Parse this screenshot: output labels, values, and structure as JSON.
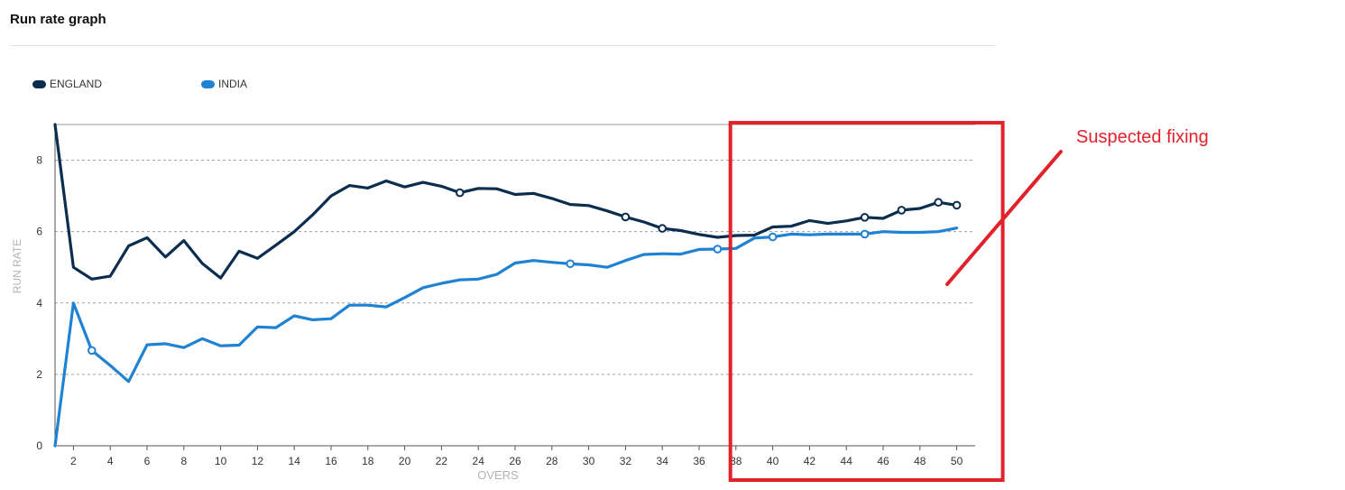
{
  "header": {
    "title": "Run rate graph"
  },
  "legend": [
    {
      "name": "ENGLAND",
      "color": "#0b2d4e"
    },
    {
      "name": "INDIA",
      "color": "#1f82d3"
    }
  ],
  "annotation": {
    "text": "Suspected fixing",
    "color": "#e1222a"
  },
  "chart_data": {
    "type": "line",
    "xlabel": "OVERS",
    "ylabel": "RUN RATE",
    "xlim": [
      1,
      51
    ],
    "ylim": [
      0,
      9
    ],
    "xticks": [
      2,
      4,
      6,
      8,
      10,
      12,
      14,
      16,
      18,
      20,
      22,
      24,
      26,
      28,
      30,
      32,
      34,
      36,
      38,
      40,
      42,
      44,
      46,
      48,
      50
    ],
    "yticks": [
      0,
      2,
      4,
      6,
      8
    ],
    "grid": "horizontal-dashed",
    "legend_position": "top-left",
    "highlight_region": {
      "x_from": 37.7,
      "x_to": 52.5,
      "label": "Suspected fixing"
    },
    "x": [
      1,
      2,
      3,
      4,
      5,
      6,
      7,
      8,
      9,
      10,
      11,
      12,
      13,
      14,
      15,
      16,
      17,
      18,
      19,
      20,
      21,
      22,
      23,
      24,
      25,
      26,
      27,
      28,
      29,
      30,
      31,
      32,
      33,
      34,
      35,
      36,
      37,
      38,
      39,
      40,
      41,
      42,
      43,
      44,
      45,
      46,
      47,
      48,
      49,
      50
    ],
    "series": [
      {
        "name": "ENGLAND",
        "color": "#0b2d4e",
        "values": [
          9.0,
          5.0,
          4.67,
          4.75,
          5.6,
          5.83,
          5.29,
          5.75,
          5.11,
          4.7,
          5.45,
          5.25,
          5.62,
          6.0,
          6.47,
          7.0,
          7.29,
          7.22,
          7.42,
          7.25,
          7.38,
          7.27,
          7.09,
          7.21,
          7.2,
          7.04,
          7.07,
          6.93,
          6.76,
          6.73,
          6.58,
          6.41,
          6.27,
          6.09,
          6.03,
          5.92,
          5.84,
          5.89,
          5.9,
          6.13,
          6.15,
          6.31,
          6.23,
          6.3,
          6.4,
          6.37,
          6.6,
          6.65,
          6.82,
          6.74
        ],
        "markers_at": [
          23,
          32,
          34,
          45,
          47,
          49,
          50
        ]
      },
      {
        "name": "INDIA",
        "color": "#1f82d3",
        "values": [
          0.0,
          4.0,
          2.67,
          2.25,
          1.8,
          2.83,
          2.86,
          2.75,
          3.0,
          2.8,
          2.82,
          3.33,
          3.31,
          3.64,
          3.53,
          3.56,
          3.94,
          3.94,
          3.89,
          4.15,
          4.43,
          4.55,
          4.65,
          4.67,
          4.8,
          5.12,
          5.19,
          5.14,
          5.1,
          5.07,
          5.0,
          5.19,
          5.36,
          5.38,
          5.37,
          5.5,
          5.51,
          5.53,
          5.82,
          5.85,
          5.93,
          5.91,
          5.93,
          5.93,
          5.93,
          6.0,
          5.98,
          5.98,
          6.0,
          6.1
        ],
        "markers_at": [
          3,
          29,
          37,
          40,
          45
        ]
      }
    ]
  }
}
